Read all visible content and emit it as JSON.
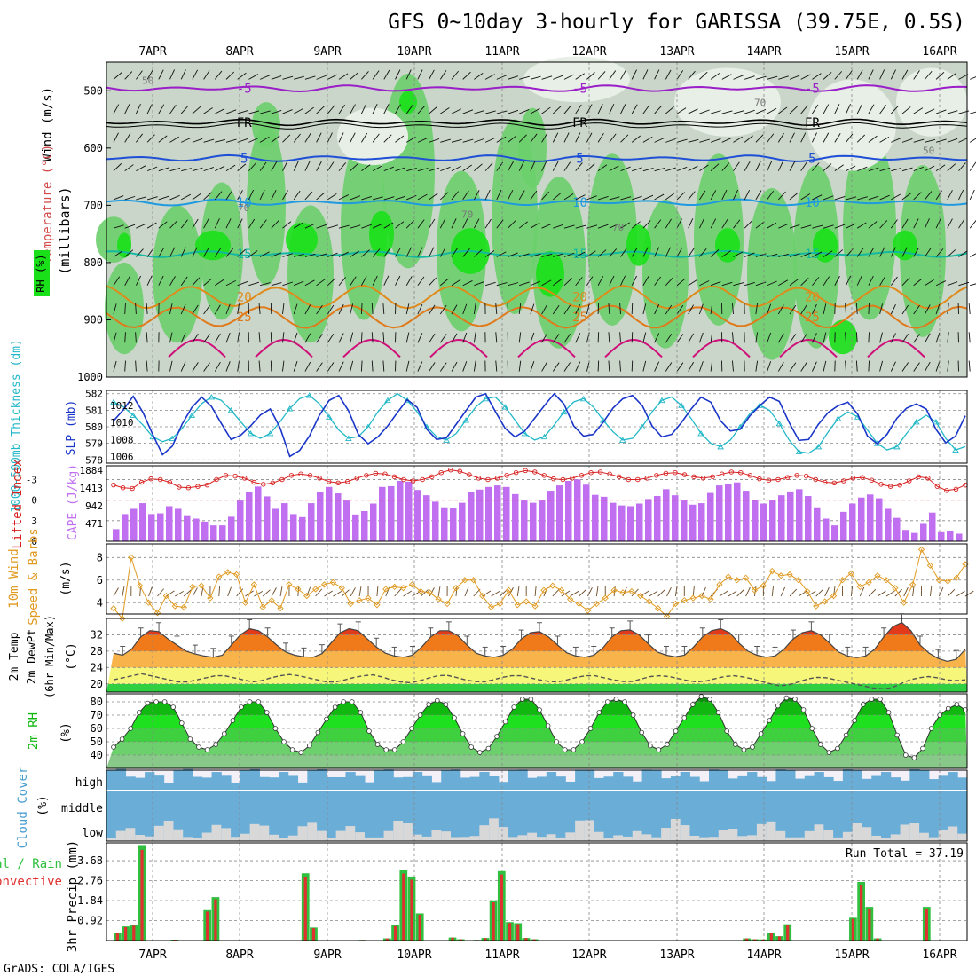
{
  "chart_data": {
    "type": "multi-panel meteogram",
    "title": "GFS 0~10day 3-hourly for GARISSA (39.75E, 0.5S)",
    "footer": "GrADS: COLA/IGES",
    "dates": [
      "7APR",
      "8APR",
      "9APR",
      "10APR",
      "11APR",
      "12APR",
      "13APR",
      "14APR",
      "15APR",
      "16APR"
    ],
    "upper_air": {
      "ylabel_wind": "Wind (m/s)",
      "ylabel_temp": "Temperature (°C)",
      "ylabel_p": "(millibars)",
      "ylabel_rh": "RH (%)",
      "pressure_ticks": [
        "500",
        "600",
        "700",
        "800",
        "900",
        "1000"
      ],
      "pressure_values": [
        500,
        600,
        700,
        800,
        900,
        1000
      ],
      "ylim": [
        1000,
        450
      ],
      "isotherms": [
        {
          "label": "-5",
          "pressure": 496,
          "color": "#9b1fc8"
        },
        {
          "label": "FR",
          "pressure": 555,
          "color": "#000000"
        },
        {
          "label": "5",
          "pressure": 618,
          "color": "#1f4fd6"
        },
        {
          "label": "10",
          "pressure": 695,
          "color": "#1f9ae0"
        },
        {
          "label": "15",
          "pressure": 785,
          "color": "#14b8a0"
        },
        {
          "label": "20",
          "pressure": 860,
          "color": "#e08a1a"
        },
        {
          "label": "25",
          "pressure": 895,
          "color": "#e07a1a"
        }
      ],
      "rh_labels": [
        "50",
        "70",
        "70",
        "70",
        "70",
        "50"
      ]
    },
    "thickness_slp": {
      "ylabel_left": "1000-500mb Thickness (dm)",
      "ylabel_right": "SLP (mb)",
      "left_ticks": [
        "582",
        "581",
        "580",
        "579",
        "578"
      ],
      "right_ticks": [
        "1012",
        "1010",
        "1008",
        "1006"
      ],
      "slp": [
        1010.2,
        1011.5,
        1013.1,
        1011.2,
        1008.6,
        1006.2,
        1007.2,
        1009.8,
        1011.8,
        1013.0,
        1011.9,
        1009.9,
        1008.0,
        1008.5,
        1009.6,
        1010.9,
        1011.6,
        1009.4,
        1006.0,
        1006.7,
        1008.4,
        1010.8,
        1012.6,
        1013.2,
        1011.4,
        1008.6,
        1007.5,
        1008.3,
        1009.6,
        1011.2,
        1012.7,
        1011.8,
        1009.2,
        1008.0,
        1008.2,
        1009.8,
        1011.4,
        1013.0,
        1013.4,
        1011.3,
        1009.3,
        1008.3,
        1009.0,
        1010.5,
        1012.0,
        1013.4,
        1012.2,
        1009.6,
        1008.4,
        1008.6,
        1010.0,
        1011.7,
        1012.8,
        1013.2,
        1012.0,
        1009.6,
        1008.3,
        1008.6,
        1010.0,
        1011.6,
        1013.0,
        1012.4,
        1010.2,
        1009.0,
        1009.2,
        1010.8,
        1012.0,
        1013.0,
        1012.5,
        1010.0,
        1007.9,
        1008.0,
        1009.8,
        1011.2,
        1012.0,
        1012.4,
        1011.0,
        1008.4,
        1007.5,
        1008.6,
        1010.5,
        1011.7,
        1012.2,
        1011.6,
        1009.2,
        1007.6,
        1008.4,
        1010.8
      ],
      "thickness": [
        581.5,
        581.2,
        580.7,
        580.1,
        579.4,
        579.1,
        579.3,
        579.9,
        580.7,
        581.4,
        581.8,
        581.6,
        581.0,
        580.3,
        579.6,
        579.3,
        579.6,
        580.3,
        581.1,
        581.7,
        581.9,
        581.4,
        580.6,
        579.8,
        579.3,
        579.4,
        580.0,
        580.9,
        581.6,
        582.0,
        581.6,
        580.9,
        580.0,
        579.4,
        579.2,
        579.6,
        580.4,
        581.2,
        581.7,
        581.8,
        581.2,
        580.4,
        579.6,
        579.2,
        579.4,
        580.1,
        580.9,
        581.5,
        581.7,
        581.2,
        580.4,
        579.7,
        579.2,
        579.3,
        580.0,
        580.9,
        581.6,
        581.8,
        581.3,
        580.5,
        579.6,
        579.0,
        578.8,
        579.2,
        580.0,
        580.8,
        581.3,
        581.0,
        580.2,
        579.2,
        578.5,
        578.4,
        578.8,
        579.7,
        580.5,
        580.9,
        580.6,
        579.8,
        579.0,
        578.6,
        578.8,
        579.6,
        580.3,
        580.7,
        580.3,
        579.3,
        578.6,
        578.8
      ]
    },
    "lifted_cape": {
      "ylabel_left": "Lifted Index",
      "ylabel_right": "CAPE (J/kg)",
      "left_ticks": [
        "-3",
        "0",
        "3",
        "6"
      ],
      "right_ticks": [
        "1884",
        "1413",
        "942",
        "471"
      ],
      "cape": [
        320,
        720,
        860,
        1010,
        720,
        740,
        930,
        860,
        690,
        600,
        520,
        420,
        420,
        650,
        1080,
        1300,
        1450,
        1190,
        860,
        1010,
        720,
        640,
        1010,
        1300,
        1440,
        1270,
        1080,
        710,
        800,
        1000,
        1440,
        1460,
        1600,
        1580,
        1360,
        1220,
        1050,
        900,
        890,
        1020,
        1300,
        1370,
        1440,
        1480,
        1440,
        1250,
        1080,
        1020,
        1080,
        1340,
        1480,
        1600,
        1640,
        1500,
        1230,
        1180,
        1020,
        950,
        930,
        1000,
        1120,
        1200,
        1380,
        1220,
        1080,
        970,
        1010,
        1280,
        1480,
        1520,
        1560,
        1340,
        1100,
        1000,
        1080,
        1220,
        1320,
        1380,
        1200,
        900,
        600,
        420,
        780,
        1000,
        1160,
        1240,
        1140,
        860,
        620,
        300,
        220,
        460,
        760,
        240,
        280,
        200
      ],
      "lifted_index": [
        -2.2,
        -1.8,
        -1.7,
        -2.6,
        -3.1,
        -3.0,
        -2.6,
        -1.9,
        -1.8,
        -2.0,
        -2.2,
        -3.0,
        -3.6,
        -3.5,
        -3.2,
        -2.6,
        -2.3,
        -2.5,
        -3.0,
        -3.6,
        -3.8,
        -3.6,
        -3.2,
        -2.7,
        -2.5,
        -2.7,
        -3.2,
        -3.6,
        -3.9,
        -3.8,
        -3.4,
        -3.0,
        -2.8,
        -3.0,
        -3.4,
        -4.0,
        -4.4,
        -4.2,
        -3.7,
        -3.2,
        -3.0,
        -3.2,
        -3.6,
        -4.0,
        -4.3,
        -4.1,
        -3.6,
        -3.1,
        -3.0,
        -3.2,
        -3.6,
        -4.0,
        -4.1,
        -3.8,
        -3.4,
        -3.0,
        -3.0,
        -3.2,
        -3.6,
        -3.9,
        -4.0,
        -3.7,
        -3.4,
        -3.2,
        -3.4,
        -3.8,
        -4.1,
        -4.0,
        -3.6,
        -3.1,
        -2.9,
        -3.0,
        -3.3,
        -3.6,
        -3.5,
        -3.0,
        -2.6,
        -2.5,
        -2.8,
        -3.2,
        -3.3,
        -2.9,
        -2.3,
        -2.0,
        -2.2,
        -2.8,
        -3.4,
        -3.2,
        -2.0,
        -1.4,
        -1.6,
        -2.2
      ]
    },
    "wind10m": {
      "ylabel_left": "10m Wind",
      "ylabel_right": "Speed & Barbs",
      "ylabel_units": "(m/s)",
      "ticks": [
        "8",
        "6",
        "4"
      ],
      "speed": [
        3.5,
        2.6,
        8.0,
        5.5,
        4.0,
        3.1,
        4.6,
        3.7,
        3.6,
        5.4,
        5.5,
        4.4,
        6.3,
        6.7,
        6.5,
        4.0,
        5.6,
        3.6,
        4.2,
        3.5,
        5.6,
        5.2,
        4.6,
        5.2,
        5.6,
        5.8,
        5.3,
        3.9,
        4.2,
        4.4,
        3.8,
        5.2,
        5.4,
        5.3,
        5.6,
        5.0,
        4.9,
        4.3,
        3.9,
        5.3,
        6.0,
        6.0,
        4.6,
        3.6,
        3.9,
        5.1,
        3.8,
        4.1,
        3.7,
        5.1,
        5.5,
        5.1,
        4.3,
        3.9,
        3.3,
        3.9,
        4.4,
        5.1,
        4.9,
        5.0,
        4.6,
        4.1,
        3.5,
        2.8,
        3.9,
        4.2,
        4.4,
        4.6,
        4.3,
        5.6,
        6.3,
        6.0,
        6.2,
        5.1,
        5.5,
        6.8,
        6.4,
        6.5,
        6.0,
        5.0,
        3.7,
        4.1,
        4.6,
        6.0,
        6.6,
        5.4,
        5.8,
        6.4,
        6.0,
        5.3,
        4.0,
        5.6,
        8.7,
        7.3,
        6.0,
        5.9,
        6.2,
        7.4
      ]
    },
    "temp2m": {
      "ylabel": "2m Temp 2m DewPt (6hr Min/Max)",
      "ylabel_units": "(°C)",
      "ticks": [
        "32",
        "28",
        "24",
        "20"
      ],
      "temp": [
        27.5,
        27.0,
        28.5,
        31.5,
        33.0,
        32.8,
        31.0,
        29.5,
        28.0,
        27.3,
        26.8,
        26.5,
        27.0,
        29.5,
        32.0,
        33.5,
        33.0,
        31.5,
        29.5,
        27.8,
        27.0,
        26.6,
        26.5,
        27.4,
        30.0,
        32.5,
        33.5,
        33.0,
        31.0,
        29.0,
        27.5,
        26.8,
        26.5,
        27.0,
        29.0,
        31.5,
        33.0,
        33.0,
        31.8,
        29.5,
        27.5,
        26.8,
        26.5,
        27.0,
        28.5,
        31.0,
        32.5,
        32.8,
        31.5,
        29.5,
        27.6,
        26.8,
        26.5,
        27.0,
        28.8,
        31.5,
        33.0,
        33.2,
        32.0,
        29.8,
        27.8,
        27.0,
        26.6,
        27.0,
        29.0,
        31.5,
        33.0,
        33.5,
        32.5,
        30.0,
        28.0,
        27.0,
        26.5,
        26.8,
        28.5,
        31.0,
        32.5,
        33.0,
        32.0,
        30.0,
        27.8,
        26.8,
        26.4,
        26.8,
        28.5,
        31.5,
        34.0,
        35.0,
        33.0,
        29.5,
        27.5,
        26.2,
        25.5,
        26.0,
        28.5
      ],
      "dewpoint": [
        21.0,
        21.5,
        22.0,
        22.5,
        22.0,
        21.5,
        21.0,
        20.5,
        20.5,
        21.0,
        21.5,
        22.0,
        22.0,
        21.5,
        21.0,
        20.5,
        20.8,
        21.5,
        22.0,
        22.3,
        22.0,
        21.5,
        21.0,
        20.5,
        20.5,
        21.0,
        21.6,
        22.0,
        22.2,
        21.7,
        21.0,
        20.5,
        20.3,
        20.7,
        21.4,
        22.0,
        22.1,
        21.6,
        21.0,
        20.6,
        20.5,
        21.0,
        21.6,
        22.0,
        22.0,
        21.5,
        21.0,
        20.6,
        20.5,
        21.0,
        21.6,
        22.0,
        22.0,
        21.5,
        21.0,
        20.6,
        20.6,
        21.2,
        21.8,
        22.0,
        21.8,
        21.3,
        20.8,
        20.5,
        20.7,
        21.3,
        21.8,
        22.0,
        21.7,
        21.2,
        20.6,
        20.0,
        19.5,
        19.8,
        20.5,
        21.2,
        21.6,
        21.5,
        21.0,
        20.5,
        20.0,
        19.5,
        19.0,
        18.8,
        19.0,
        20.0,
        21.0,
        21.5,
        21.8,
        21.5,
        21.0,
        20.8,
        21.0
      ]
    },
    "rh2m": {
      "ylabel": "2m RH",
      "ylabel_units": "(%)",
      "ticks": [
        "80",
        "70",
        "60",
        "50",
        "40"
      ],
      "rh": [
        46,
        52,
        60,
        72,
        79,
        80,
        80,
        76,
        64,
        52,
        46,
        44,
        48,
        56,
        66,
        76,
        80,
        80,
        72,
        60,
        50,
        44,
        42,
        47,
        57,
        67,
        76,
        80,
        80,
        72,
        58,
        48,
        44,
        44,
        50,
        60,
        70,
        78,
        81,
        78,
        68,
        56,
        46,
        42,
        45,
        54,
        65,
        76,
        82,
        82,
        74,
        62,
        50,
        44,
        44,
        50,
        60,
        72,
        80,
        82,
        80,
        70,
        57,
        47,
        44,
        48,
        58,
        68,
        78,
        84,
        82,
        72,
        58,
        48,
        44,
        46,
        56,
        66,
        77,
        83,
        82,
        74,
        60,
        48,
        42,
        45,
        55,
        66,
        78,
        82,
        82,
        72,
        55,
        40,
        38,
        45,
        60,
        70,
        75,
        78,
        74
      ]
    },
    "cloud": {
      "ylabel": "Cloud Cover",
      "ylabel_units": "(%)",
      "levels": [
        "high",
        "middle",
        "low"
      ]
    },
    "precip": {
      "ylabel_left": "3hr Precip (mm)",
      "ylabel_total": "Total / Rain",
      "ylabel_conv": "Convective",
      "ticks": [
        "3.68",
        "2.76",
        "1.84",
        "0.92"
      ],
      "run_total": "Run Total = 37.19",
      "bars": [
        0.35,
        0.65,
        0.72,
        4.4,
        0,
        0,
        0,
        0.04,
        0,
        0,
        0,
        1.4,
        2.0,
        0,
        0,
        0,
        0,
        0,
        0,
        0.02,
        0,
        0,
        0,
        3.1,
        0.6,
        0,
        0,
        0,
        0,
        0,
        0.03,
        0,
        0,
        0.1,
        0.7,
        3.25,
        2.95,
        1.25,
        0,
        0,
        0,
        0.14,
        0.06,
        0,
        0.03,
        0.12,
        1.85,
        3.2,
        0.85,
        0.8,
        0.12,
        0.06,
        0,
        0,
        0,
        0,
        0,
        0,
        0,
        0,
        0,
        0,
        0,
        0,
        0,
        0.02,
        0,
        0,
        0,
        0,
        0,
        0,
        0,
        0,
        0,
        0,
        0,
        0.1,
        0.06,
        0.05,
        0.35,
        0.2,
        0.75,
        0,
        0,
        0,
        0.02,
        0,
        0,
        0,
        1.05,
        2.7,
        1.55,
        0.1,
        0,
        0,
        0,
        0,
        0,
        1.55,
        0,
        0,
        0,
        0
      ]
    }
  }
}
